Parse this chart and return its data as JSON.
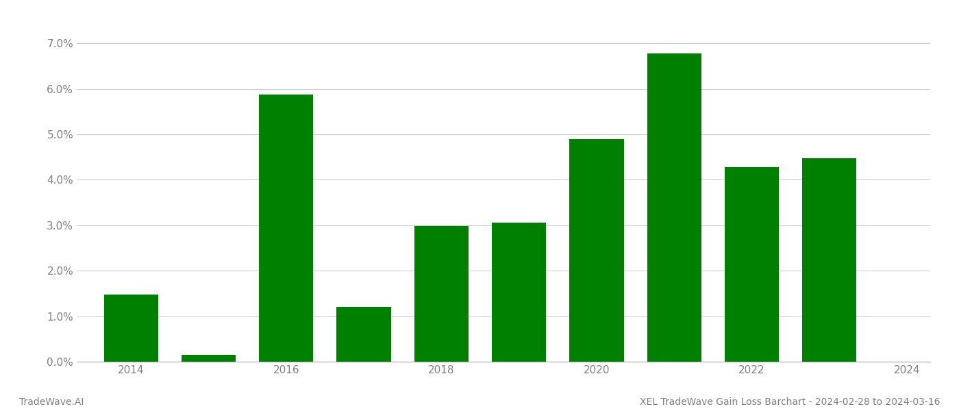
{
  "years": [
    2014,
    2015,
    2016,
    2017,
    2018,
    2019,
    2020,
    2021,
    2022,
    2023
  ],
  "values": [
    0.0148,
    0.0015,
    0.0588,
    0.012,
    0.0298,
    0.0306,
    0.049,
    0.0678,
    0.0428,
    0.0448
  ],
  "bar_color": "#008000",
  "ylim": [
    0,
    0.075
  ],
  "yticks": [
    0.0,
    0.01,
    0.02,
    0.03,
    0.04,
    0.05,
    0.06,
    0.07
  ],
  "xtick_positions": [
    2014,
    2016,
    2018,
    2020,
    2022,
    2024
  ],
  "xtick_labels": [
    "2014",
    "2016",
    "2018",
    "2020",
    "2022",
    "2024"
  ],
  "xlim": [
    2013.3,
    2024.3
  ],
  "footer_left": "TradeWave.AI",
  "footer_right": "XEL TradeWave Gain Loss Barchart - 2024-02-28 to 2024-03-16",
  "background_color": "#ffffff",
  "grid_color": "#cccccc",
  "bar_width": 0.7,
  "spine_color": "#aaaaaa",
  "tick_label_color": "#808080",
  "footer_fontsize": 10,
  "tick_fontsize": 11
}
